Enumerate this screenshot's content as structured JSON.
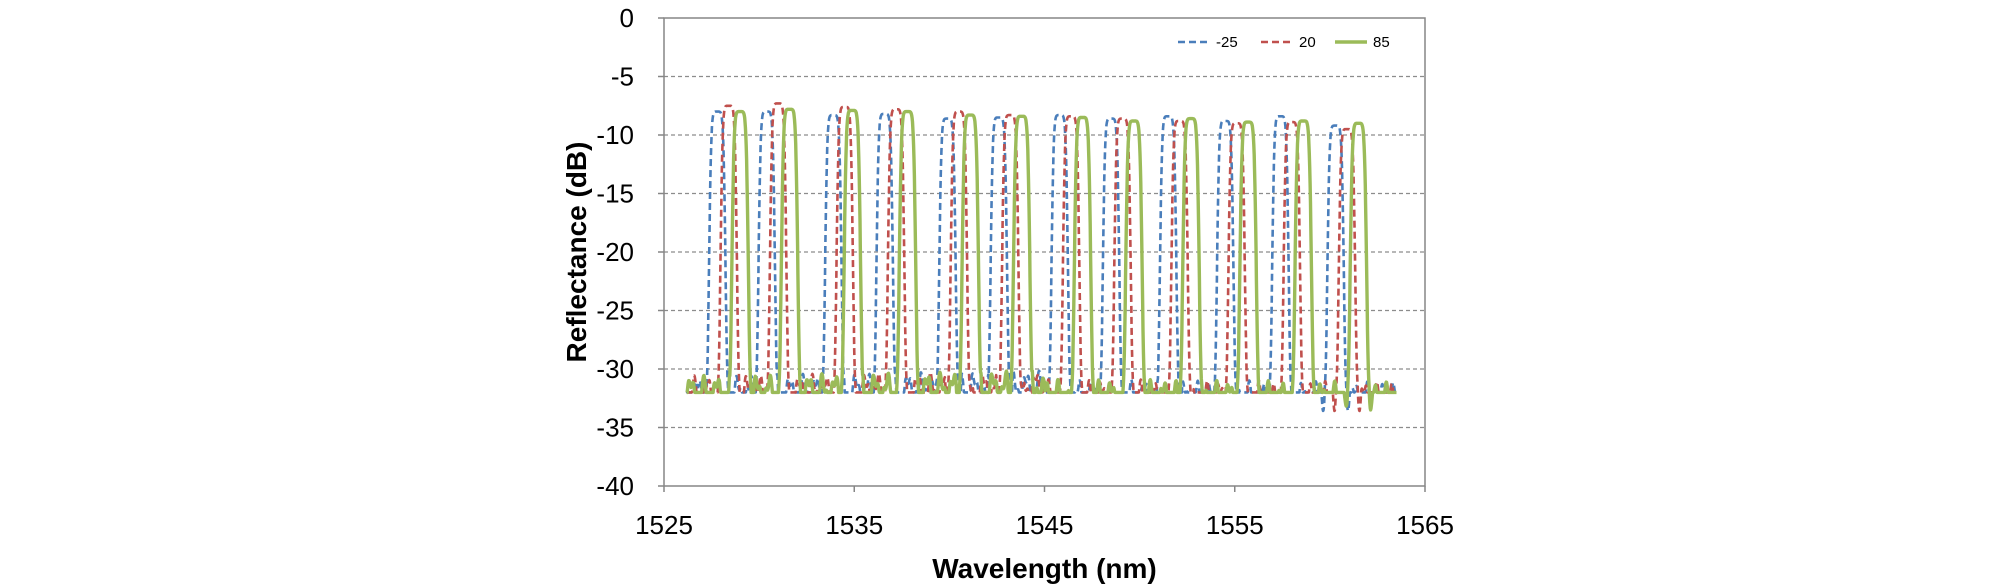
{
  "chart_data": {
    "type": "line",
    "title": "",
    "xlabel": "Wavelength (nm)",
    "ylabel": "Reflectance (dB)",
    "xlim": [
      1525,
      1565
    ],
    "ylim": [
      -40,
      0
    ],
    "x_ticks": [
      "1525",
      "1535",
      "1545",
      "1555",
      "1565"
    ],
    "y_ticks": [
      "0",
      "-5",
      "-10",
      "-15",
      "-20",
      "-25",
      "-30",
      "-35",
      "-40"
    ],
    "grid": "horizontal dashed",
    "legend_position": "top-right",
    "baseline_db": -32,
    "peak_width_nm": 0.9,
    "series": [
      {
        "name": "-25",
        "color": "#4a7ebb",
        "line_style": "dashed",
        "peaks_nm": [
          1527.8,
          1530.4,
          1533.9,
          1536.6,
          1539.9,
          1542.6,
          1545.8,
          1548.5,
          1551.5,
          1554.5,
          1557.4,
          1560.3
        ],
        "peaks_db": [
          -8,
          -8,
          -8.3,
          -8.2,
          -8.6,
          -8.5,
          -8.3,
          -8.6,
          -8.4,
          -8.8,
          -8.4,
          -9.2
        ]
      },
      {
        "name": "20",
        "color": "#c0504d",
        "line_style": "dashed",
        "peaks_nm": [
          1528.4,
          1531.0,
          1534.5,
          1537.2,
          1540.5,
          1543.2,
          1546.4,
          1549.1,
          1552.1,
          1555.1,
          1558.0,
          1560.9
        ],
        "peaks_db": [
          -7.5,
          -7.3,
          -7.6,
          -7.8,
          -8,
          -8.3,
          -8.4,
          -8.6,
          -8.8,
          -9.0,
          -8.9,
          -9.5
        ]
      },
      {
        "name": "85",
        "color": "#9bbb59",
        "line_style": "solid",
        "peaks_nm": [
          1529.0,
          1531.6,
          1534.9,
          1537.8,
          1541.1,
          1543.8,
          1547.0,
          1549.7,
          1552.7,
          1555.7,
          1558.6,
          1561.5
        ],
        "peaks_db": [
          -8,
          -7.8,
          -7.9,
          -8,
          -8.3,
          -8.4,
          -8.5,
          -8.8,
          -8.6,
          -8.9,
          -8.8,
          -9.0
        ]
      }
    ]
  }
}
